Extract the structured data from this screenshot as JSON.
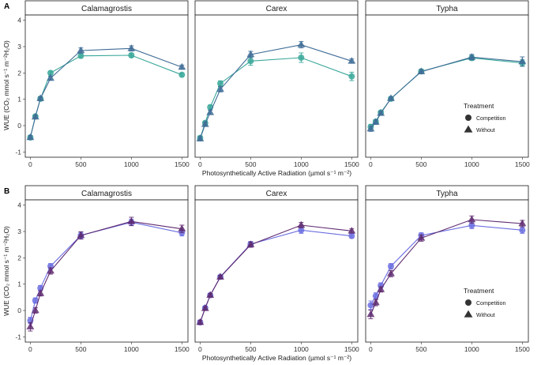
{
  "chart_data": [
    {
      "panel_label": "A",
      "type": "line",
      "x": [
        0,
        50,
        100,
        200,
        500,
        1000,
        1500
      ],
      "x_ticks": [
        0,
        500,
        1000,
        1500
      ],
      "y_ticks": [
        -1,
        0,
        1,
        2,
        3,
        4
      ],
      "xlim": [
        -50,
        1560
      ],
      "ylim": [
        -1.2,
        4.2
      ],
      "xlabel": "Photosynthetically Active Radiation  (µmol  s⁻¹ m⁻²)",
      "ylabel": "WUE  (CO₂ mmol s⁻¹ m⁻²H₂O)",
      "colors": {
        "Competition": "#3aa89a",
        "Without": "#3f6c96"
      },
      "legend": {
        "title": "Treatment",
        "entries": [
          "Competition",
          "Without"
        ],
        "facet": "Typha",
        "position": "bottom-right"
      },
      "facets": [
        {
          "name": "Calamagrostis",
          "series": [
            {
              "name": "Competition",
              "marker": "circle",
              "values": [
                -0.45,
                0.35,
                1.02,
                2.0,
                2.65,
                2.67,
                1.93
              ],
              "errors": [
                0.07,
                0.06,
                0.07,
                0.07,
                0.08,
                0.08,
                0.06
              ]
            },
            {
              "name": "Without",
              "marker": "triangle",
              "values": [
                -0.45,
                0.33,
                1.03,
                1.8,
                2.85,
                2.93,
                2.22
              ],
              "errors": [
                0.07,
                0.06,
                0.07,
                0.08,
                0.1,
                0.1,
                0.08
              ]
            }
          ]
        },
        {
          "name": "Carex",
          "series": [
            {
              "name": "Competition",
              "marker": "circle",
              "values": [
                -0.47,
                0.1,
                0.7,
                1.6,
                2.45,
                2.58,
                1.87
              ],
              "errors": [
                0.08,
                0.08,
                0.08,
                0.1,
                0.16,
                0.18,
                0.16
              ]
            },
            {
              "name": "Without",
              "marker": "triangle",
              "values": [
                -0.5,
                0.05,
                0.5,
                1.38,
                2.7,
                3.07,
                2.45
              ],
              "errors": [
                0.08,
                0.08,
                0.08,
                0.1,
                0.12,
                0.12,
                0.08
              ]
            }
          ]
        },
        {
          "name": "Typha",
          "series": [
            {
              "name": "Competition",
              "marker": "circle",
              "values": [
                -0.05,
                0.15,
                0.5,
                1.02,
                2.06,
                2.57,
                2.38
              ],
              "errors": [
                0.1,
                0.08,
                0.07,
                0.06,
                0.08,
                0.1,
                0.12
              ]
            },
            {
              "name": "Without",
              "marker": "triangle",
              "values": [
                -0.12,
                0.13,
                0.47,
                1.03,
                2.05,
                2.6,
                2.43
              ],
              "errors": [
                0.1,
                0.08,
                0.07,
                0.06,
                0.08,
                0.1,
                0.18
              ]
            }
          ]
        }
      ]
    },
    {
      "panel_label": "B",
      "type": "line",
      "x": [
        0,
        50,
        100,
        200,
        500,
        1000,
        1500
      ],
      "x_ticks": [
        0,
        500,
        1000,
        1500
      ],
      "y_ticks": [
        -1,
        0,
        1,
        2,
        3,
        4
      ],
      "xlim": [
        -50,
        1560
      ],
      "ylim": [
        -1.2,
        4.2
      ],
      "xlabel": "Photosynthetically Active Radiation  (µmol  s⁻¹ m⁻²)",
      "ylabel": "WUE  (CO₂ mmol s⁻¹ m⁻²H₂O)",
      "colors": {
        "Competition": "#6b6ee0",
        "Without": "#5e2a70"
      },
      "legend": {
        "title": "Treatment",
        "entries": [
          "Competition",
          "Without"
        ],
        "facet": "Typha",
        "position": "bottom-right"
      },
      "facets": [
        {
          "name": "Calamagrostis",
          "series": [
            {
              "name": "Competition",
              "marker": "circle",
              "values": [
                -0.38,
                0.38,
                0.85,
                1.68,
                2.85,
                3.35,
                2.95
              ],
              "errors": [
                0.12,
                0.1,
                0.1,
                0.1,
                0.12,
                0.12,
                0.12
              ]
            },
            {
              "name": "Without",
              "marker": "triangle",
              "values": [
                -0.62,
                0.0,
                0.65,
                1.5,
                2.85,
                3.38,
                3.1
              ],
              "errors": [
                0.16,
                0.1,
                0.1,
                0.12,
                0.14,
                0.16,
                0.14
              ]
            }
          ]
        },
        {
          "name": "Carex",
          "series": [
            {
              "name": "Competition",
              "marker": "circle",
              "values": [
                -0.45,
                0.1,
                0.58,
                1.28,
                2.52,
                3.05,
                2.83
              ],
              "errors": [
                0.08,
                0.06,
                0.06,
                0.06,
                0.1,
                0.12,
                0.08
              ]
            },
            {
              "name": "Without",
              "marker": "triangle",
              "values": [
                -0.45,
                0.08,
                0.58,
                1.27,
                2.5,
                3.24,
                3.02
              ],
              "errors": [
                0.08,
                0.06,
                0.06,
                0.06,
                0.1,
                0.1,
                0.08
              ]
            }
          ]
        },
        {
          "name": "Typha",
          "series": [
            {
              "name": "Competition",
              "marker": "circle",
              "values": [
                0.2,
                0.55,
                0.95,
                1.68,
                2.85,
                3.23,
                3.05
              ],
              "errors": [
                0.16,
                0.12,
                0.1,
                0.1,
                0.1,
                0.12,
                0.12
              ]
            },
            {
              "name": "Without",
              "marker": "triangle",
              "values": [
                -0.15,
                0.3,
                0.8,
                1.4,
                2.75,
                3.45,
                3.3
              ],
              "errors": [
                0.16,
                0.12,
                0.1,
                0.12,
                0.12,
                0.14,
                0.12
              ]
            }
          ]
        }
      ]
    }
  ]
}
